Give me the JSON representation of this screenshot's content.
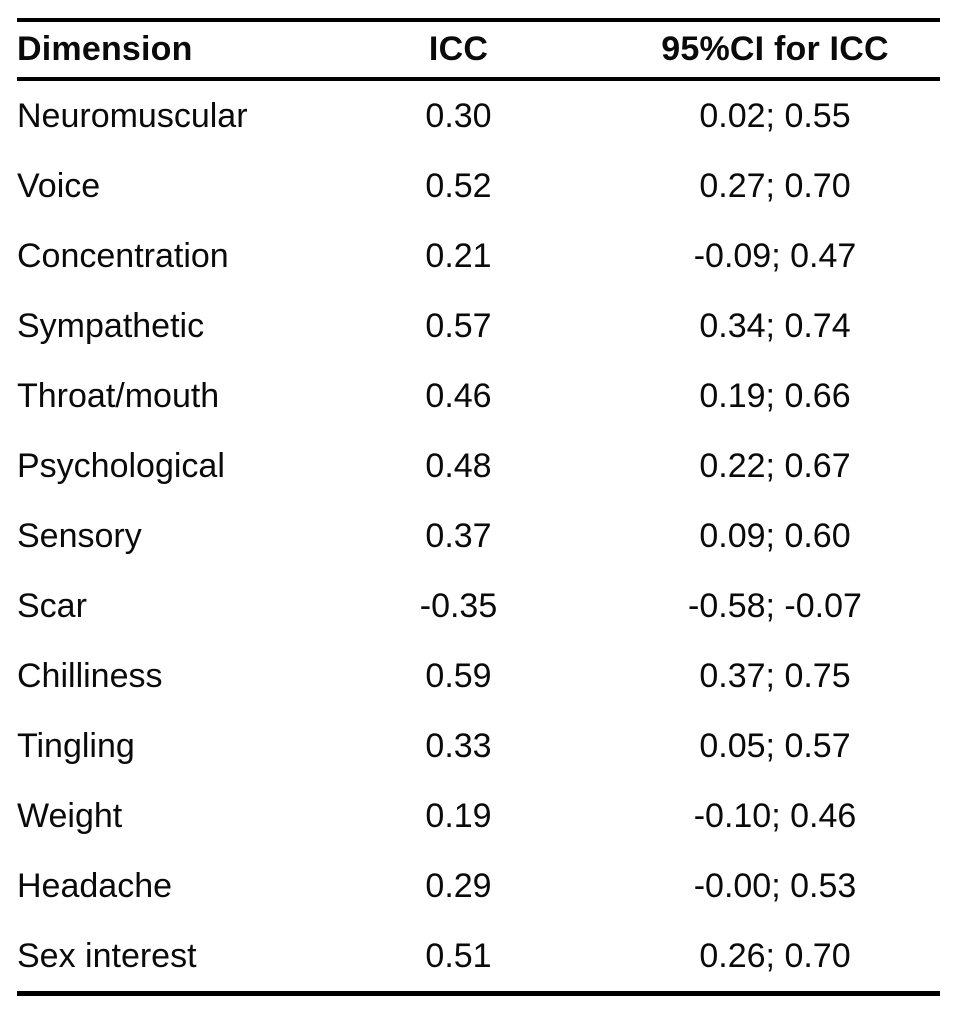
{
  "table": {
    "columns": [
      {
        "label": "Dimension"
      },
      {
        "label": "ICC"
      },
      {
        "label": "95%CI for ICC"
      }
    ],
    "rows": [
      {
        "dimension": "Neuromuscular",
        "icc": "0.30",
        "ci": "0.02; 0.55"
      },
      {
        "dimension": "Voice",
        "icc": "0.52",
        "ci": "0.27; 0.70"
      },
      {
        "dimension": "Concentration",
        "icc": "0.21",
        "ci": "-0.09; 0.47"
      },
      {
        "dimension": "Sympathetic",
        "icc": "0.57",
        "ci": "0.34; 0.74"
      },
      {
        "dimension": "Throat/mouth",
        "icc": "0.46",
        "ci": "0.19; 0.66"
      },
      {
        "dimension": "Psychological",
        "icc": "0.48",
        "ci": "0.22; 0.67"
      },
      {
        "dimension": "Sensory",
        "icc": "0.37",
        "ci": "0.09; 0.60"
      },
      {
        "dimension": "Scar",
        "icc": "-0.35",
        "ci": "-0.58; -0.07"
      },
      {
        "dimension": "Chilliness",
        "icc": "0.59",
        "ci": "0.37; 0.75"
      },
      {
        "dimension": "Tingling",
        "icc": "0.33",
        "ci": "0.05; 0.57"
      },
      {
        "dimension": "Weight",
        "icc": "0.19",
        "ci": "-0.10; 0.46"
      },
      {
        "dimension": "Headache",
        "icc": "0.29",
        "ci": "-0.00; 0.53"
      },
      {
        "dimension": "Sex interest",
        "icc": "0.51",
        "ci": "0.26; 0.70"
      }
    ],
    "text_color": "#0a0a0a",
    "rule_color": "#000000"
  }
}
